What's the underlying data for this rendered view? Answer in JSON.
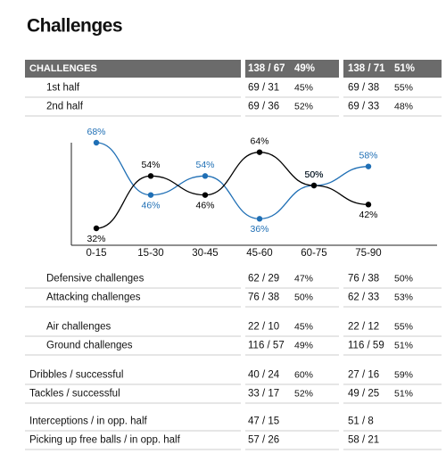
{
  "title": "Challenges",
  "table": {
    "header": [
      "CHALLENGES",
      "138 / 67",
      "49%",
      "138 / 71",
      "51%"
    ],
    "groups": [
      [
        [
          "1st half",
          "69 / 31",
          "45%",
          "69 / 38",
          "55%"
        ],
        [
          "2nd half",
          "69 / 36",
          "52%",
          "69 / 33",
          "48%"
        ]
      ],
      [
        [
          "Defensive challenges",
          "62 / 29",
          "47%",
          "76 / 38",
          "50%"
        ],
        [
          "Attacking challenges",
          "76 / 38",
          "50%",
          "62 / 33",
          "53%"
        ]
      ],
      [
        [
          "Air challenges",
          "22 / 10",
          "45%",
          "22 / 12",
          "55%"
        ],
        [
          "Ground challenges",
          "116 / 57",
          "49%",
          "116 / 59",
          "51%"
        ]
      ],
      [
        [
          "Dribbles / successful",
          "40 / 24",
          "60%",
          "27 / 16",
          "59%"
        ],
        [
          "Tackles / successful",
          "33 / 17",
          "52%",
          "49 / 25",
          "51%"
        ]
      ],
      [
        [
          "Interceptions / in opp. half",
          "47 / 15",
          "51 / 8"
        ],
        [
          "Picking up free balls / in opp. half",
          "57 / 26",
          "58 / 21"
        ]
      ]
    ]
  },
  "chart": {
    "type": "line",
    "categories": [
      "0-15",
      "15-30",
      "30-45",
      "45-60",
      "60-75",
      "75-90"
    ],
    "series": [
      {
        "color": "#1f6fb5",
        "values": [
          68,
          46,
          54,
          36,
          50,
          58
        ],
        "value_labels": [
          "68%",
          "46%",
          "54%",
          "36%",
          "50%",
          "58%"
        ]
      },
      {
        "color": "#000000",
        "values": [
          32,
          54,
          46,
          64,
          50,
          42
        ],
        "value_labels": [
          "32%",
          "54%",
          "46%",
          "64%",
          "50%",
          "42%"
        ]
      }
    ]
  }
}
